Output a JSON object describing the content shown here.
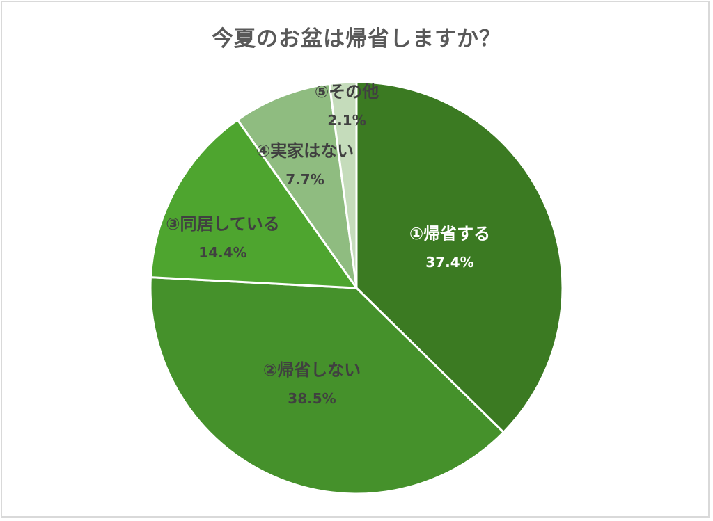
{
  "chart_data": {
    "type": "pie",
    "title": "今夏のお盆は帰省しますか？",
    "categories": [
      "①帰省する",
      "②帰省しない",
      "③同居している",
      "④実家はない",
      "⑤その他"
    ],
    "values": [
      37.4,
      38.5,
      14.4,
      7.7,
      2.1
    ],
    "value_labels": [
      "37.4%",
      "38.5%",
      "14.4%",
      "7.7%",
      "2.1%"
    ],
    "colors": [
      "#3b7a22",
      "#45912b",
      "#4ea52f",
      "#8fbc80",
      "#c5dcbb"
    ],
    "label_colors": [
      "#ffffff",
      "#404040",
      "#404040",
      "#404040",
      "#404040"
    ],
    "start": "12 o'clock",
    "direction": "clockwise",
    "legend": "none",
    "data_labels": "inside"
  }
}
